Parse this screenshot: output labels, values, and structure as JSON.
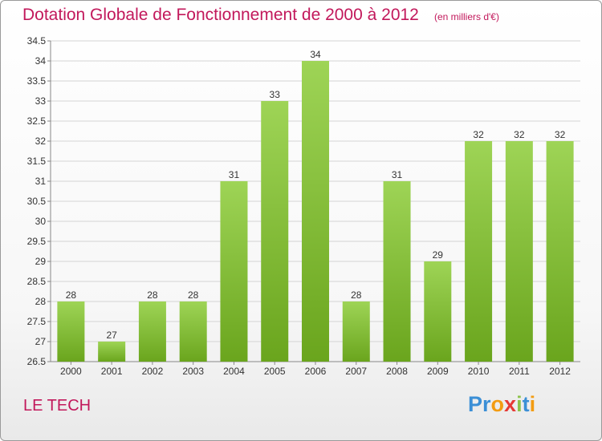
{
  "title": "Dotation Globale de Fonctionnement de 2000 à 2012",
  "subtitle": "(en milliers d'€)",
  "commune": "LE TECH",
  "logo": {
    "text": "Proxiti",
    "colors": [
      "#3b8fd6",
      "#3b8fd6",
      "#f39c12",
      "#e53935",
      "#8bc34a",
      "#3b8fd6",
      "#f39c12"
    ]
  },
  "colors": {
    "bar_light": "#9ed456",
    "bar_dark": "#6aa51d",
    "title": "#c2185b"
  },
  "chart_data": {
    "type": "bar",
    "categories": [
      "2000",
      "2001",
      "2002",
      "2003",
      "2004",
      "2005",
      "2006",
      "2007",
      "2008",
      "2009",
      "2010",
      "2011",
      "2012"
    ],
    "values": [
      28,
      27,
      28,
      28,
      31,
      33,
      34,
      28,
      31,
      29,
      32,
      32,
      32
    ],
    "data_labels": [
      "28",
      "27",
      "28",
      "28",
      "31",
      "33",
      "34",
      "28",
      "31",
      "29",
      "32",
      "32",
      "32"
    ],
    "ylim": [
      26.5,
      34.5
    ],
    "yticks": [
      "26.5",
      "27",
      "27.5",
      "28",
      "28.5",
      "29",
      "29.5",
      "30",
      "30.5",
      "31",
      "31.5",
      "32",
      "32.5",
      "33",
      "33.5",
      "34",
      "34.5"
    ],
    "grid": "horizontal",
    "xlabel": "",
    "ylabel": ""
  }
}
